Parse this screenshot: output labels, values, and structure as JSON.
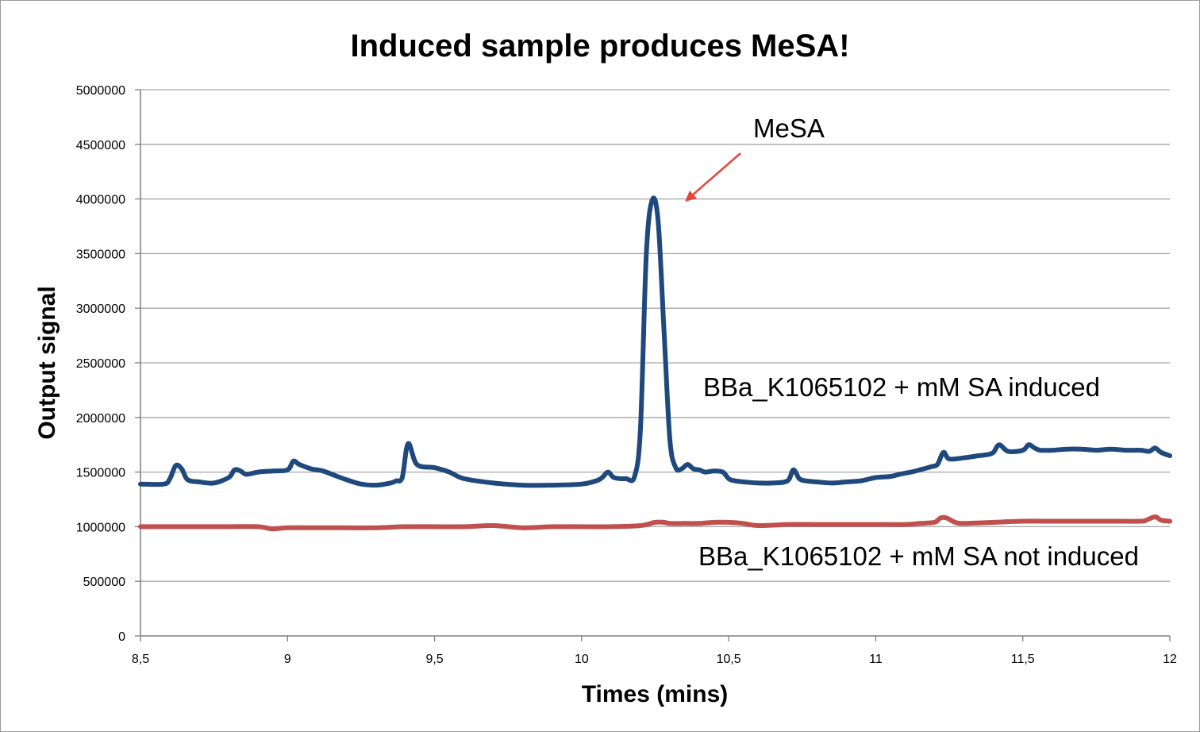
{
  "chart_data": {
    "type": "line",
    "title": "Induced sample produces MeSA!",
    "xlabel": "Times (mins)",
    "ylabel": "Output signal",
    "xlim": [
      8.5,
      12
    ],
    "ylim": [
      0,
      5000000
    ],
    "x_ticks": [
      8.5,
      9,
      9.5,
      10,
      10.5,
      11,
      11.5,
      12
    ],
    "x_tick_labels": [
      "8,5",
      "9",
      "9,5",
      "10",
      "10,5",
      "11",
      "11,5",
      "12"
    ],
    "y_ticks": [
      0,
      500000,
      1000000,
      1500000,
      2000000,
      2500000,
      3000000,
      3500000,
      4000000,
      4500000,
      5000000
    ],
    "y_tick_labels": [
      "0",
      "500000",
      "1000000",
      "1500000",
      "2000000",
      "2500000",
      "3000000",
      "3500000",
      "4000000",
      "4500000",
      "5000000"
    ],
    "grid": true,
    "legend": "none",
    "series": [
      {
        "name": "BBa_K1065102 + mM SA induced",
        "color": "#1f497d",
        "x": [
          8.5,
          8.58,
          8.6,
          8.62,
          8.64,
          8.66,
          8.7,
          8.75,
          8.8,
          8.82,
          8.84,
          8.86,
          8.9,
          8.95,
          9.0,
          9.02,
          9.04,
          9.08,
          9.12,
          9.16,
          9.2,
          9.25,
          9.3,
          9.35,
          9.37,
          9.39,
          9.41,
          9.44,
          9.5,
          9.55,
          9.6,
          9.7,
          9.8,
          9.9,
          10.0,
          10.05,
          10.07,
          10.09,
          10.11,
          10.15,
          10.18,
          10.2,
          10.22,
          10.24,
          10.26,
          10.28,
          10.3,
          10.32,
          10.34,
          10.36,
          10.38,
          10.4,
          10.42,
          10.45,
          10.48,
          10.5,
          10.52,
          10.55,
          10.6,
          10.65,
          10.7,
          10.72,
          10.74,
          10.76,
          10.8,
          10.85,
          10.9,
          10.95,
          11.0,
          11.05,
          11.08,
          11.12,
          11.15,
          11.19,
          11.21,
          11.23,
          11.25,
          11.3,
          11.35,
          11.38,
          11.4,
          11.42,
          11.45,
          11.5,
          11.52,
          11.54,
          11.56,
          11.6,
          11.65,
          11.7,
          11.75,
          11.8,
          11.85,
          11.9,
          11.93,
          11.95,
          11.97,
          12.0
        ],
        "values": [
          1390000,
          1390000,
          1440000,
          1560000,
          1530000,
          1430000,
          1410000,
          1400000,
          1450000,
          1520000,
          1510000,
          1480000,
          1500000,
          1510000,
          1520000,
          1600000,
          1570000,
          1530000,
          1510000,
          1470000,
          1430000,
          1390000,
          1380000,
          1400000,
          1420000,
          1450000,
          1760000,
          1570000,
          1540000,
          1500000,
          1440000,
          1400000,
          1380000,
          1380000,
          1390000,
          1420000,
          1450000,
          1500000,
          1450000,
          1440000,
          1460000,
          1900000,
          3500000,
          3990000,
          3800000,
          2800000,
          1800000,
          1540000,
          1530000,
          1570000,
          1530000,
          1520000,
          1500000,
          1510000,
          1500000,
          1440000,
          1420000,
          1410000,
          1400000,
          1400000,
          1420000,
          1520000,
          1440000,
          1420000,
          1410000,
          1400000,
          1410000,
          1420000,
          1450000,
          1460000,
          1480000,
          1500000,
          1520000,
          1550000,
          1570000,
          1680000,
          1620000,
          1630000,
          1650000,
          1660000,
          1680000,
          1750000,
          1690000,
          1700000,
          1750000,
          1720000,
          1700000,
          1700000,
          1710000,
          1710000,
          1700000,
          1710000,
          1700000,
          1700000,
          1690000,
          1720000,
          1680000,
          1650000
        ]
      },
      {
        "name": "BBa_K1065102 + mM SA not induced",
        "color": "#c0504d",
        "x": [
          8.5,
          8.6,
          8.7,
          8.8,
          8.9,
          8.95,
          9.0,
          9.1,
          9.2,
          9.3,
          9.4,
          9.5,
          9.6,
          9.7,
          9.8,
          9.9,
          10.0,
          10.1,
          10.2,
          10.25,
          10.28,
          10.3,
          10.35,
          10.4,
          10.45,
          10.5,
          10.55,
          10.6,
          10.7,
          10.8,
          10.9,
          11.0,
          11.1,
          11.15,
          11.2,
          11.22,
          11.24,
          11.27,
          11.3,
          11.4,
          11.5,
          11.6,
          11.7,
          11.8,
          11.9,
          11.92,
          11.95,
          11.97,
          12.0
        ],
        "values": [
          1000000,
          1000000,
          1000000,
          1000000,
          1000000,
          980000,
          990000,
          990000,
          990000,
          990000,
          1000000,
          1000000,
          1000000,
          1010000,
          990000,
          1000000,
          1000000,
          1000000,
          1010000,
          1040000,
          1040000,
          1030000,
          1030000,
          1030000,
          1040000,
          1040000,
          1030000,
          1010000,
          1020000,
          1020000,
          1020000,
          1020000,
          1020000,
          1030000,
          1040000,
          1080000,
          1080000,
          1040000,
          1030000,
          1040000,
          1050000,
          1050000,
          1050000,
          1050000,
          1050000,
          1060000,
          1090000,
          1060000,
          1050000
        ]
      }
    ],
    "annotations": [
      {
        "text": "MeSA",
        "x": 10.26,
        "y": 4000000,
        "arrow": true,
        "arrow_color": "#e8453c"
      },
      {
        "text": "BBa_K1065102 + mM SA induced",
        "x": 10.4,
        "y": 2300000
      },
      {
        "text": "BBa_K1065102 + mM SA not induced",
        "x": 10.4,
        "y": 750000
      }
    ]
  }
}
